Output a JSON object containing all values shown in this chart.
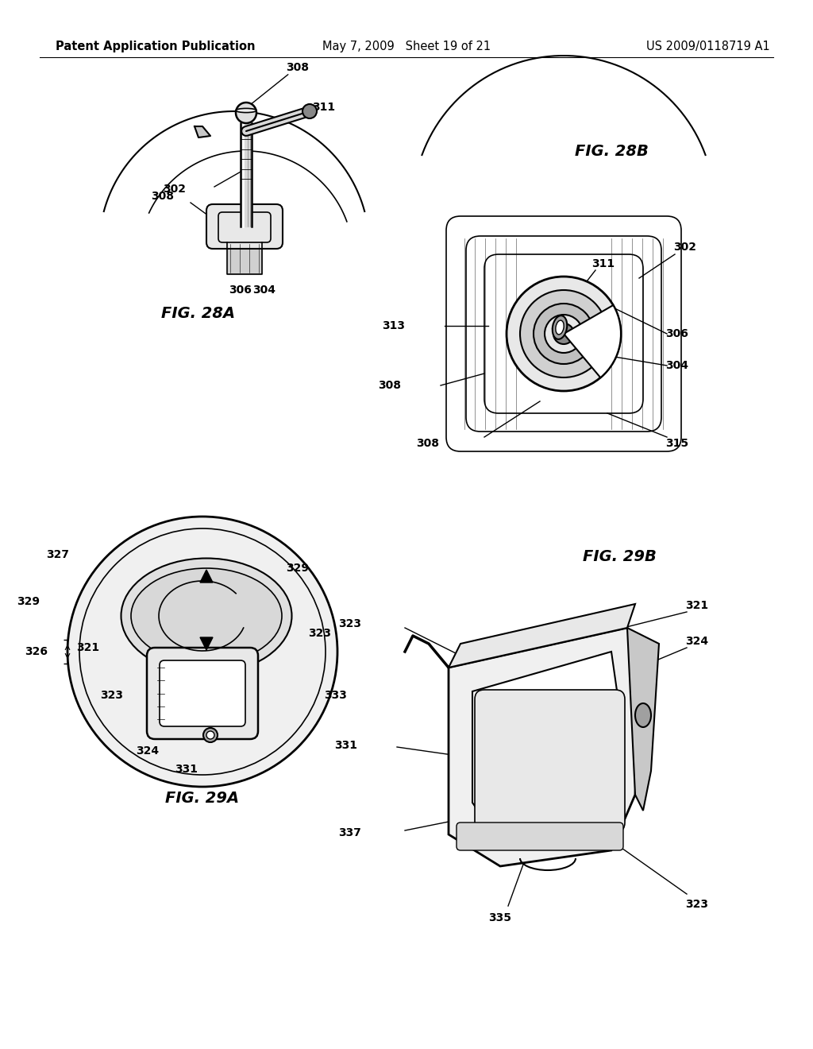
{
  "bg_color": "#ffffff",
  "header_left": "Patent Application Publication",
  "header_center": "May 7, 2009   Sheet 19 of 21",
  "header_right": "US 2009/0118719 A1",
  "fig28a_label": "FIG. 28A",
  "fig28b_label": "FIG. 28B",
  "fig29a_label": "FIG. 29A",
  "fig29b_label": "FIG. 29B",
  "line_color": "#000000",
  "font_size_header": 10.5,
  "font_size_fig_label": 14,
  "font_size_ref": 10
}
